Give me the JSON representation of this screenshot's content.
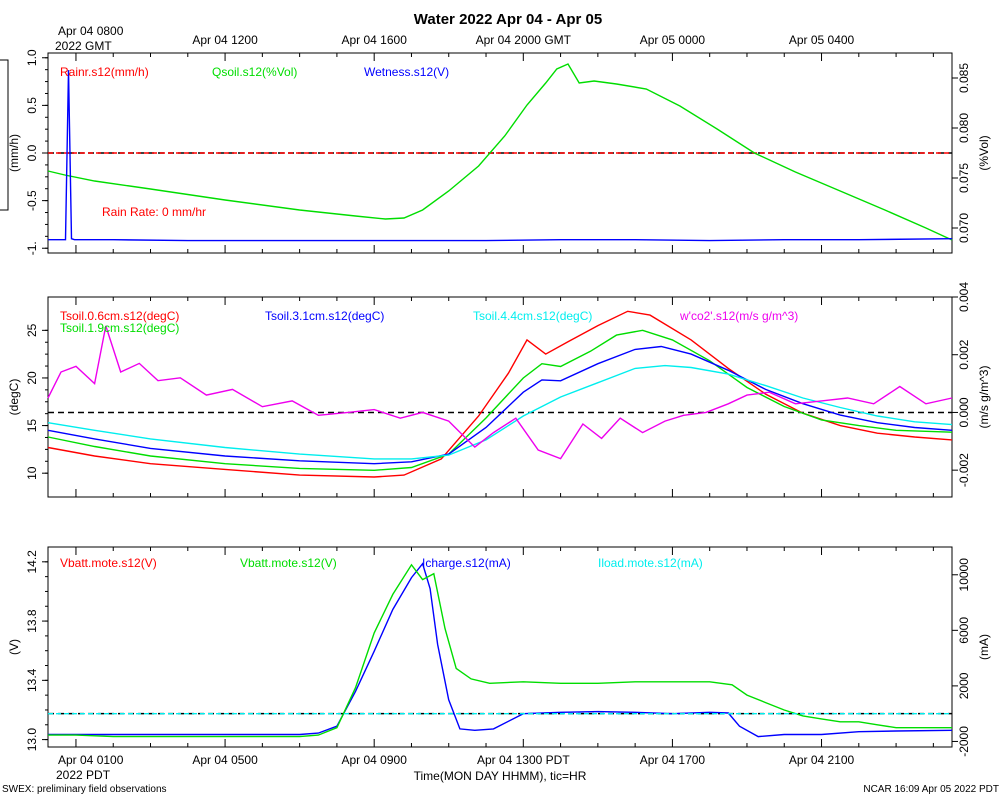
{
  "header": {
    "title": "Water 2022 Apr 04 - Apr 05",
    "top_first_tick": "Apr 04 0800",
    "top_first_tick_year": "2022 GMT",
    "top_ticks": [
      "Apr 04 1200",
      "Apr 04 1600",
      "Apr 04 2000 GMT",
      "Apr 05 0000",
      "Apr 05 0400"
    ]
  },
  "footer": {
    "bottom_first_tick": "Apr 04 0100",
    "bottom_first_tick_year": "2022 PDT",
    "bottom_ticks": [
      "Apr 04 0500",
      "Apr 04 0900",
      "Apr 04 1300 PDT",
      "Apr 04 1700",
      "Apr 04 2100"
    ],
    "xlabel": "Time(MON DAY HHMM), tic=HR",
    "left_note": "SWEX: preliminary field observations",
    "right_note": "NCAR 16:09 Apr 05 2022 PDT"
  },
  "chart_data": [
    {
      "type": "line",
      "name": "water",
      "xunit": "hours since Apr 04 0000 PDT",
      "xlim": [
        0.25,
        24.5
      ],
      "ylabel": "(mm/h)",
      "ylim": [
        -1.05,
        1.05
      ],
      "yticks": [
        1.0,
        0.5,
        0.0,
        -0.5,
        -1.0
      ],
      "ytick_labels": [
        "1.0",
        "0.5",
        "0.0",
        "-0.5",
        "-1."
      ],
      "y2label": "(%Vol)",
      "y2lim": [
        0.0675,
        0.0875
      ],
      "y2ticks": [
        0.085,
        0.08,
        0.075,
        0.07
      ],
      "y2tick_labels": [
        "0.085",
        "0.080",
        "0.075",
        "0.070"
      ],
      "annotation": "Rain Rate: 0 mm/hr",
      "legend": [
        {
          "label": "Rainr.s12(mm/h)",
          "color": "#ff0000"
        },
        {
          "label": "Qsoil.s12(%Vol)",
          "color": "#00dd00"
        },
        {
          "label": "Wetness.s12(V)",
          "color": "#0000ff"
        }
      ],
      "series": [
        {
          "name": "Rainr.s12",
          "axis": "left",
          "color": "#ff0000",
          "dashed": true,
          "x": [
            0.25,
            24.5
          ],
          "y": [
            0.0,
            0.0
          ]
        },
        {
          "name": "Qsoil.s12",
          "axis": "right",
          "color": "#00dd00",
          "x": [
            0.25,
            0.7,
            1.5,
            3.0,
            5.0,
            7.0,
            8.5,
            9.3,
            9.8,
            10.3,
            11.0,
            11.8,
            12.5,
            13.1,
            13.6,
            13.9,
            14.2,
            14.5,
            14.9,
            15.5,
            16.3,
            17.2,
            18.2,
            19.2,
            20.3,
            21.5,
            22.7,
            23.8,
            24.5
          ],
          "y": [
            0.0757,
            0.0753,
            0.0747,
            0.0739,
            0.0728,
            0.0718,
            0.0712,
            0.0709,
            0.071,
            0.0718,
            0.0737,
            0.0762,
            0.0792,
            0.0823,
            0.0845,
            0.0859,
            0.0864,
            0.0845,
            0.0847,
            0.0844,
            0.0839,
            0.0822,
            0.0799,
            0.0775,
            0.0756,
            0.0737,
            0.0718,
            0.07,
            0.0688
          ]
        },
        {
          "name": "Wetness.s12",
          "axis": "left",
          "color": "#0000ff",
          "x": [
            0.25,
            0.72,
            0.8,
            0.88,
            0.96,
            2.0,
            4.0,
            6.0,
            8.0,
            10.0,
            12.0,
            14.0,
            16.0,
            18.0,
            20.0,
            22.0,
            24.5
          ],
          "y": [
            -0.91,
            -0.91,
            0.87,
            -0.9,
            -0.91,
            -0.91,
            -0.92,
            -0.92,
            -0.92,
            -0.92,
            -0.92,
            -0.91,
            -0.91,
            -0.92,
            -0.91,
            -0.91,
            -0.9
          ]
        }
      ]
    },
    {
      "type": "line",
      "name": "soil-temperature",
      "xunit": "hours since Apr 04 0000 PDT",
      "xlim": [
        0.25,
        24.5
      ],
      "ylabel": "(degC)",
      "ylim": [
        7.5,
        28.5
      ],
      "yticks": [
        25,
        20,
        15,
        10
      ],
      "ytick_labels": [
        "25",
        "20",
        "15",
        "10"
      ],
      "y2label": "(m/s g/m^3)",
      "y2lim": [
        -0.00293,
        0.004
      ],
      "y2ticks": [
        0.004,
        0.002,
        0.0,
        -0.002
      ],
      "y2tick_labels": [
        "0.004",
        "0.002",
        "0.000",
        "-0.002"
      ],
      "legend": [
        {
          "label": "Tsoil.0.6cm.s12(degC)",
          "color": "#ff0000"
        },
        {
          "label": "Tsoil.1.9cm.s12(degC)",
          "color": "#00dd00"
        },
        {
          "label": "Tsoil.3.1cm.s12(degC)",
          "color": "#0000ff"
        },
        {
          "label": "Tsoil.4.4cm.s12(degC)",
          "color": "#00eeee"
        },
        {
          "label": "w'co2'.s12(m/s g/m^3)",
          "color": "#ee00ee"
        }
      ],
      "series": [
        {
          "name": "Tsoil.0.6cm.s12",
          "color": "#ff0000",
          "x": [
            0.25,
            1.5,
            3.0,
            5.0,
            7.0,
            9.0,
            9.8,
            10.8,
            11.8,
            12.6,
            13.1,
            13.6,
            14.2,
            15.0,
            15.8,
            16.4,
            17.5,
            18.5,
            19.5,
            20.5,
            21.5,
            22.5,
            23.5,
            24.5
          ],
          "y": [
            12.7,
            11.8,
            11.0,
            10.4,
            9.8,
            9.6,
            9.8,
            11.5,
            16.0,
            20.5,
            24.0,
            22.5,
            23.8,
            25.5,
            27.0,
            26.6,
            24.0,
            21.0,
            18.3,
            16.3,
            15.0,
            14.2,
            13.8,
            13.5
          ]
        },
        {
          "name": "Tsoil.1.9cm.s12",
          "color": "#00dd00",
          "x": [
            0.25,
            1.5,
            3.0,
            5.0,
            7.0,
            9.0,
            10.0,
            11.0,
            12.0,
            13.0,
            13.5,
            14.0,
            14.8,
            15.5,
            16.2,
            17.0,
            18.0,
            19.0,
            20.0,
            21.0,
            22.0,
            23.0,
            24.5
          ],
          "y": [
            13.8,
            12.8,
            11.8,
            11.0,
            10.5,
            10.3,
            10.6,
            12.0,
            15.8,
            20.0,
            21.5,
            21.2,
            22.8,
            24.5,
            25.0,
            24.0,
            21.8,
            19.0,
            17.0,
            15.6,
            15.0,
            14.5,
            14.3
          ]
        },
        {
          "name": "Tsoil.3.1cm.s12",
          "color": "#0000ff",
          "x": [
            0.25,
            1.5,
            3.0,
            5.0,
            7.0,
            9.0,
            10.0,
            11.0,
            12.0,
            13.0,
            13.5,
            14.0,
            15.0,
            16.0,
            16.7,
            17.5,
            18.5,
            19.5,
            20.5,
            21.5,
            22.5,
            23.5,
            24.5
          ],
          "y": [
            14.5,
            13.6,
            12.6,
            11.8,
            11.3,
            11.0,
            11.2,
            12.0,
            14.8,
            18.5,
            19.8,
            19.7,
            21.5,
            23.0,
            23.3,
            22.5,
            20.8,
            18.8,
            17.3,
            16.1,
            15.3,
            14.8,
            14.5
          ]
        },
        {
          "name": "Tsoil.4.4cm.s12",
          "color": "#00eeee",
          "x": [
            0.25,
            1.5,
            3.0,
            5.0,
            7.0,
            9.0,
            10.0,
            11.0,
            12.0,
            13.0,
            14.0,
            15.0,
            16.0,
            16.8,
            17.5,
            18.5,
            19.5,
            20.5,
            21.5,
            22.5,
            23.5,
            24.5
          ],
          "y": [
            15.3,
            14.5,
            13.6,
            12.7,
            12.0,
            11.5,
            11.5,
            11.9,
            13.5,
            16.0,
            18.0,
            19.5,
            21.0,
            21.3,
            21.1,
            20.4,
            19.2,
            17.9,
            16.9,
            16.0,
            15.4,
            15.1
          ]
        },
        {
          "name": "w'co2'.s12",
          "axis": "right",
          "color": "#ee00ee",
          "x": [
            0.25,
            0.6,
            1.0,
            1.5,
            1.8,
            2.2,
            2.7,
            3.2,
            3.8,
            4.5,
            5.2,
            6.0,
            6.8,
            7.5,
            8.3,
            9.0,
            9.7,
            10.3,
            11.0,
            11.7,
            12.2,
            12.8,
            13.4,
            14.0,
            14.6,
            15.1,
            15.6,
            16.2,
            16.8,
            17.3,
            17.9,
            18.5,
            19.0,
            19.6,
            20.3,
            21.0,
            21.7,
            22.4,
            23.1,
            23.8,
            24.5
          ],
          "y": [
            0.0005,
            0.0014,
            0.0016,
            0.001,
            0.003,
            0.0014,
            0.0017,
            0.0011,
            0.0012,
            0.0006,
            0.0008,
            0.0002,
            0.0004,
            -0.0001,
            0.0,
            0.0001,
            -0.0002,
            0.0,
            -0.0003,
            -0.0012,
            -0.0007,
            -0.0002,
            -0.0013,
            -0.0016,
            -0.0004,
            -0.0009,
            -0.0002,
            -0.0007,
            -0.0003,
            -0.0001,
            0.0,
            0.0003,
            0.0006,
            0.0007,
            0.0003,
            0.0004,
            0.0005,
            0.0003,
            0.0009,
            0.0003,
            0.0005
          ]
        }
      ]
    },
    {
      "type": "line",
      "name": "power",
      "xunit": "hours since Apr 04 0000 PDT",
      "xlim": [
        0.25,
        24.5
      ],
      "ylabel": "(V)",
      "ylim": [
        12.95,
        14.3
      ],
      "yticks": [
        14.2,
        13.8,
        13.4,
        13.0
      ],
      "ytick_labels": [
        "14.2",
        "13.8",
        "13.4",
        "13.0"
      ],
      "y2label": "(mA)",
      "y2lim": [
        -2400,
        12000
      ],
      "y2ticks": [
        10000,
        6000,
        2000,
        -2000
      ],
      "y2tick_labels": [
        "10000",
        "6000",
        "2000",
        "-2000"
      ],
      "legend": [
        {
          "label": "Vbatt.mote.s12(V)",
          "color": "#ff0000"
        },
        {
          "label": "Vbatt.mote.s12(V)",
          "color": "#00dd00"
        },
        {
          "label": "Icharge.s12(mA)",
          "color": "#0000ff"
        },
        {
          "label": "Iload.mote.s12(mA)",
          "color": "#00eeee"
        }
      ],
      "series": [
        {
          "name": "Icharge.s12",
          "axis": "right",
          "color": "#0000ff",
          "x": [
            0.25,
            1.0,
            2.0,
            3.0,
            4.0,
            5.0,
            6.0,
            7.0,
            7.5,
            8.0,
            8.5,
            9.0,
            9.5,
            10.0,
            10.3,
            10.5,
            10.7,
            11.0,
            11.3,
            11.7,
            12.2,
            13.0,
            14.0,
            15.0,
            16.0,
            17.0,
            18.0,
            18.5,
            18.8,
            19.3,
            20.0,
            21.0,
            22.0,
            23.0,
            24.5
          ],
          "y": [
            -1500,
            -1500,
            -1500,
            -1500,
            -1500,
            -1500,
            -1500,
            -1500,
            -1400,
            -900,
            1600,
            4500,
            7500,
            9800,
            10800,
            9000,
            5000,
            1000,
            -1100,
            -1200,
            -1100,
            0,
            100,
            150,
            100,
            0,
            100,
            50,
            -900,
            -1650,
            -1500,
            -1500,
            -1300,
            -1250,
            -1200
          ]
        },
        {
          "name": "Vbatt.mote.s12",
          "color": "#00dd00",
          "x": [
            0.25,
            1.0,
            2.0,
            3.0,
            4.0,
            5.0,
            6.0,
            7.0,
            7.5,
            8.0,
            8.5,
            9.0,
            9.5,
            10.0,
            10.3,
            10.6,
            10.9,
            11.2,
            11.6,
            12.1,
            13.0,
            14.0,
            15.0,
            16.0,
            17.0,
            18.0,
            18.6,
            19.0,
            19.5,
            20.0,
            20.5,
            21.0,
            21.5,
            22.0,
            22.5,
            23.0,
            23.5,
            24.5
          ],
          "y": [
            13.03,
            13.03,
            13.02,
            13.02,
            13.02,
            13.02,
            13.02,
            13.02,
            13.03,
            13.08,
            13.35,
            13.72,
            13.98,
            14.18,
            14.08,
            14.12,
            13.75,
            13.48,
            13.41,
            13.38,
            13.39,
            13.38,
            13.38,
            13.39,
            13.39,
            13.39,
            13.37,
            13.3,
            13.25,
            13.2,
            13.16,
            13.14,
            13.12,
            13.12,
            13.1,
            13.08,
            13.08,
            13.08
          ]
        },
        {
          "name": "Iload.mote.s12",
          "axis": "right",
          "color": "#00eeee",
          "dashed": true,
          "x": [
            0.25,
            24.5
          ],
          "y": [
            0,
            0
          ]
        }
      ]
    }
  ]
}
